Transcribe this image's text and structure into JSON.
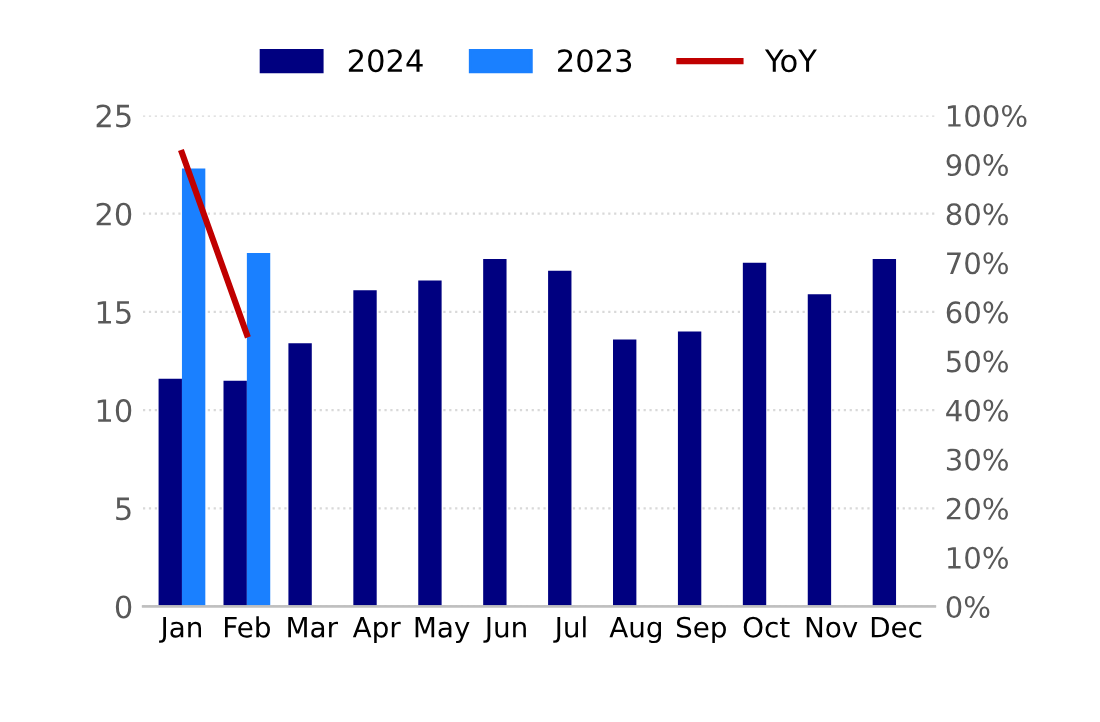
{
  "chart_data": {
    "type": "bar",
    "categories": [
      "Jan",
      "Feb",
      "Mar",
      "Apr",
      "May",
      "Jun",
      "Jul",
      "Aug",
      "Sep",
      "Oct",
      "Nov",
      "Dec"
    ],
    "series": [
      {
        "name": "2024",
        "color": "#000080",
        "values": [
          11.6,
          11.5,
          13.4,
          16.1,
          16.6,
          17.7,
          17.1,
          13.6,
          14.0,
          17.5,
          15.9,
          17.7
        ]
      },
      {
        "name": "2023",
        "color": "#1a80ff",
        "values": [
          22.3,
          18.0,
          null,
          null,
          null,
          null,
          null,
          null,
          null,
          null,
          null,
          null
        ]
      },
      {
        "name": "YoY",
        "type": "line",
        "axis": "y2",
        "color": "#c00000",
        "values": [
          92.4,
          55.4,
          null,
          null,
          null,
          null,
          null,
          null,
          null,
          null,
          null,
          null
        ]
      }
    ],
    "ylim": [
      0,
      25
    ],
    "yticks": [
      0,
      5,
      10,
      15,
      20,
      25
    ],
    "y2lim": [
      0,
      100
    ],
    "y2ticks": [
      {
        "value": 0,
        "label": "0%"
      },
      {
        "value": 10,
        "label": "10%"
      },
      {
        "value": 20,
        "label": "20%"
      },
      {
        "value": 30,
        "label": "30%"
      },
      {
        "value": 40,
        "label": "40%"
      },
      {
        "value": 50,
        "label": "50%"
      },
      {
        "value": 60,
        "label": "60%"
      },
      {
        "value": 70,
        "label": "70%"
      },
      {
        "value": 80,
        "label": "80%"
      },
      {
        "value": 90,
        "label": "90%"
      },
      {
        "value": 100,
        "label": "100%"
      }
    ],
    "grid": "y",
    "legend": "top",
    "marker": "none",
    "line_style": "solid"
  }
}
